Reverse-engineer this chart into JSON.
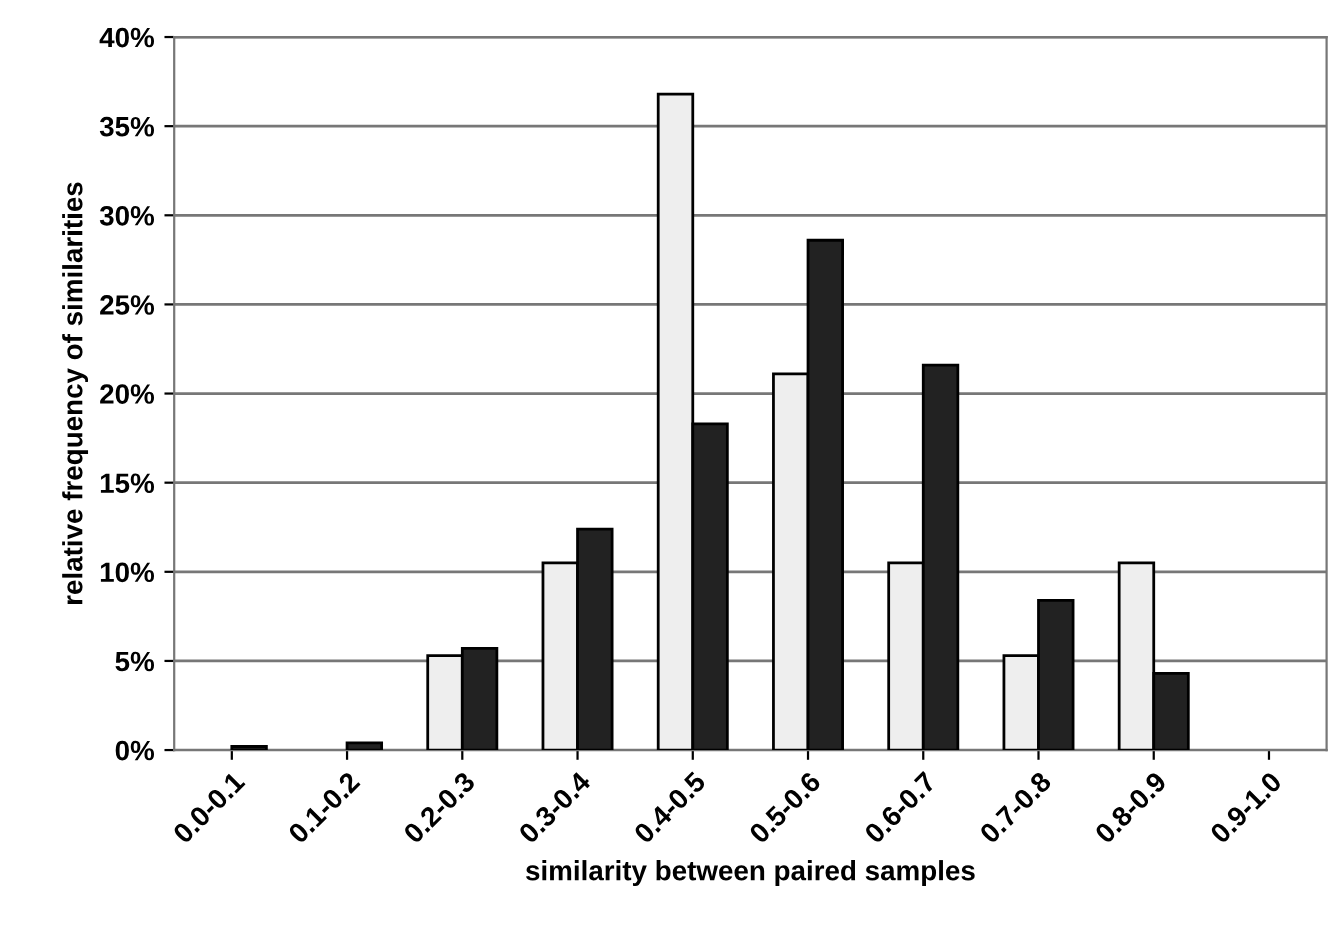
{
  "chart_data": {
    "type": "bar",
    "xlabel": "similarity between paired samples",
    "ylabel": "relative frequency of similarities",
    "categories": [
      "0.0-0.1",
      "0.1-0.2",
      "0.2-0.3",
      "0.3-0.4",
      "0.4-0.5",
      "0.5-0.6",
      "0.6-0.7",
      "0.7-0.8",
      "0.8-0.9",
      "0.9-1.0"
    ],
    "series": [
      {
        "color": "#eeeeee",
        "values": [
          0,
          0,
          5.3,
          10.5,
          36.8,
          21.1,
          10.5,
          5.3,
          10.5,
          0
        ]
      },
      {
        "color": "#222222",
        "values": [
          0.2,
          0.4,
          5.7,
          12.4,
          18.3,
          28.6,
          21.6,
          8.4,
          4.3,
          0
        ]
      }
    ],
    "ylim": [
      0,
      40
    ],
    "yticks": [
      {
        "value": 0,
        "label": "0%"
      },
      {
        "value": 5,
        "label": "5%"
      },
      {
        "value": 10,
        "label": "10%"
      },
      {
        "value": 15,
        "label": "15%"
      },
      {
        "value": 20,
        "label": "20%"
      },
      {
        "value": 25,
        "label": "25%"
      },
      {
        "value": 30,
        "label": "30%"
      },
      {
        "value": 35,
        "label": "35%"
      },
      {
        "value": 40,
        "label": "40%"
      }
    ],
    "grid": "y"
  }
}
